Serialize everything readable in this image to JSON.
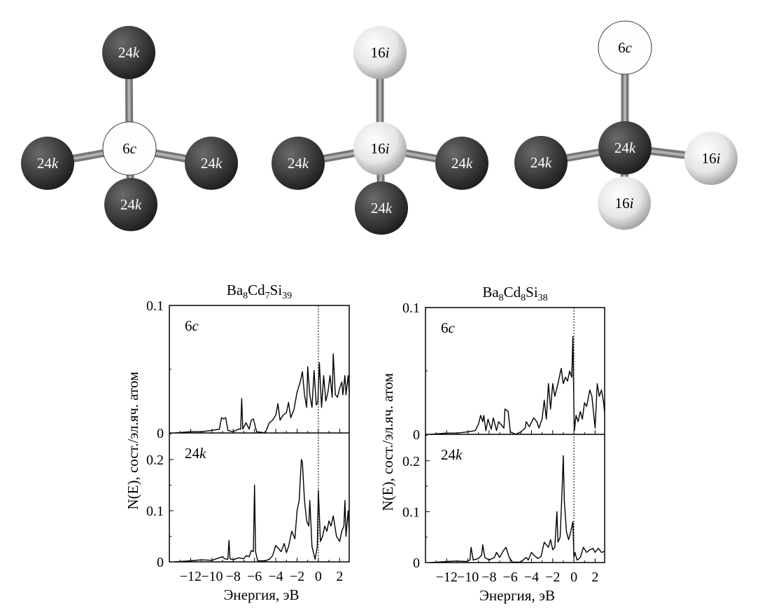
{
  "molecules": [
    {
      "center": "6c",
      "top": "24k",
      "left": "24k",
      "right": "24k",
      "bottom": "24k"
    },
    {
      "center": "16i",
      "top": "16i",
      "left": "24k",
      "right": "24k",
      "bottom": "24k"
    },
    {
      "center": "24k",
      "top": "6c",
      "left": "24k",
      "right": "16i",
      "bottom": "16i"
    }
  ],
  "atom_colors": {
    "24k": "#3a3a3a",
    "16i": "#e6e6e6",
    "6c": "#ffffff",
    "bond": "#8a8a8a"
  },
  "chart_data": [
    {
      "type": "line",
      "title": "Ba8Cd7Si39",
      "title_parts": [
        "Ba",
        "8",
        "Cd",
        "7",
        "Si",
        "39"
      ],
      "xlabel": "Энергия, эВ",
      "ylabel": "N(E), сост./эл.яч. атом",
      "xlim": [
        -14,
        2.9
      ],
      "xticks": [
        "−12",
        "−10",
        "−8",
        "−6",
        "−4",
        "−2",
        "0",
        "2"
      ],
      "xtick_values": [
        -12,
        -10,
        -8,
        -6,
        -4,
        -2,
        0,
        2
      ],
      "fermi_level": 0,
      "panels": [
        {
          "label": "6c",
          "ylim": [
            0,
            0.1
          ],
          "yticks": [
            "0",
            "0.1"
          ],
          "ytick_values": [
            0,
            0.1
          ],
          "x": [
            -13.5,
            -12,
            -11,
            -10,
            -9.3,
            -9.1,
            -8.9,
            -8.7,
            -8.5,
            -8,
            -7.5,
            -7.3,
            -7.2,
            -7.1,
            -6.8,
            -6.5,
            -6.3,
            -6.1,
            -5.8,
            -5,
            -4.6,
            -4.3,
            -4,
            -3.8,
            -3.6,
            -3.3,
            -3,
            -2.8,
            -2.6,
            -2.3,
            -2,
            -1.7,
            -1.5,
            -1.3,
            -1.1,
            -1,
            -0.8,
            -0.6,
            -0.4,
            -0.2,
            -0.05,
            0.1,
            0.3,
            0.5,
            0.7,
            0.9,
            1.1,
            1.3,
            1.4,
            1.6,
            1.8,
            2,
            2.2,
            2.3,
            2.5,
            2.6,
            2.8,
            2.9
          ],
          "y": [
            0,
            0.001,
            0.001,
            0.002,
            0.003,
            0.012,
            0.011,
            0.012,
            0.002,
            0.001,
            0.003,
            0.003,
            0.027,
            0.003,
            0.008,
            0.003,
            0.01,
            0.011,
            0.001,
            0,
            0.008,
            0.01,
            0.014,
            0.023,
            0.01,
            0.014,
            0.016,
            0.024,
            0.012,
            0.018,
            0.032,
            0.04,
            0.048,
            0.03,
            0.02,
            0.052,
            0.03,
            0.02,
            0.049,
            0.022,
            0.024,
            0.055,
            0.02,
            0.045,
            0.025,
            0.032,
            0.045,
            0.028,
            0.062,
            0.03,
            0.028,
            0.035,
            0.04,
            0.03,
            0.045,
            0.03,
            0.045,
            0.032
          ]
        },
        {
          "label": "24k",
          "ylim": [
            0,
            0.252
          ],
          "yticks": [
            "0",
            "0.1",
            "0.2"
          ],
          "ytick_values": [
            0,
            0.1,
            0.2
          ],
          "x": [
            -13.5,
            -12,
            -11,
            -10,
            -9,
            -8.8,
            -8.5,
            -8.4,
            -8.3,
            -8,
            -7.5,
            -7,
            -6.8,
            -6.5,
            -6.3,
            -6.1,
            -6.0,
            -5.9,
            -5.7,
            -5,
            -4.6,
            -4.3,
            -4,
            -3.7,
            -3.5,
            -3.2,
            -3,
            -2.8,
            -2.5,
            -2.2,
            -2,
            -1.8,
            -1.6,
            -1.5,
            -1.3,
            -1.1,
            -0.9,
            -0.8,
            -0.6,
            -0.3,
            -0.1,
            0,
            0.2,
            0.4,
            0.6,
            0.8,
            1,
            1.2,
            1.4,
            1.7,
            2,
            2.2,
            2.4,
            2.5,
            2.6,
            2.8,
            2.9
          ],
          "y": [
            0,
            0.002,
            0.004,
            0.003,
            0.01,
            0.006,
            0.005,
            0.042,
            0.006,
            0.004,
            0.008,
            0.006,
            0.012,
            0.01,
            0.022,
            0.02,
            0.15,
            0.02,
            0.002,
            0.002,
            0.005,
            0.012,
            0.032,
            0.025,
            0.02,
            0.036,
            0.018,
            0.03,
            0.06,
            0.045,
            0.1,
            0.12,
            0.2,
            0.195,
            0.12,
            0.08,
            0.07,
            0.12,
            0.03,
            0.005,
            0.03,
            0.14,
            0.04,
            0.05,
            0.07,
            0.06,
            0.08,
            0.07,
            0.09,
            0.05,
            0.04,
            0.06,
            0.07,
            0.12,
            0.05,
            0.1,
            0.06
          ]
        }
      ]
    },
    {
      "type": "line",
      "title": "Ba8Cd8Si38",
      "title_parts": [
        "Ba",
        "8",
        "Cd",
        "8",
        "Si",
        "38"
      ],
      "xlabel": "Энергия, эВ",
      "ylabel": "N(E), сост./эл.яч. атом",
      "xlim": [
        -14,
        2.9
      ],
      "xticks": [
        "−12",
        "−10",
        "−8",
        "−6",
        "−4",
        "−2",
        "0",
        "2"
      ],
      "xtick_values": [
        -12,
        -10,
        -8,
        -6,
        -4,
        -2,
        0,
        2
      ],
      "fermi_level": 0,
      "panels": [
        {
          "label": "6c",
          "ylim": [
            0,
            0.1
          ],
          "yticks": [
            "0",
            "0.1"
          ],
          "ytick_values": [
            0,
            0.1
          ],
          "x": [
            -13.5,
            -12,
            -11,
            -10,
            -9.3,
            -9,
            -8.8,
            -8.6,
            -8.5,
            -8.3,
            -8.1,
            -7.8,
            -7.6,
            -7.3,
            -7.1,
            -6.6,
            -6.5,
            -6.2,
            -6,
            -5.5,
            -5,
            -4.6,
            -4.5,
            -4.2,
            -3.8,
            -3.5,
            -3.3,
            -3,
            -2.8,
            -2.6,
            -2.4,
            -2.2,
            -2,
            -1.8,
            -1.5,
            -1.2,
            -1,
            -0.8,
            -0.6,
            -0.4,
            -0.2,
            -0.1,
            0,
            0.05,
            0.2,
            0.4,
            0.6,
            0.8,
            1,
            1.2,
            1.5,
            1.7,
            2,
            2.2,
            2.4,
            2.6,
            2.8,
            2.9
          ],
          "y": [
            0,
            0.001,
            0.001,
            0.002,
            0.003,
            0.008,
            0.015,
            0.01,
            0.015,
            0.003,
            0.012,
            0.004,
            0.013,
            0.003,
            0.01,
            0.005,
            0.02,
            0.018,
            0.002,
            0,
            0.002,
            0.005,
            0.01,
            0.006,
            0.013,
            0.01,
            0.005,
            0.012,
            0.027,
            0.012,
            0.04,
            0.02,
            0.04,
            0.03,
            0.04,
            0.052,
            0.04,
            0.045,
            0.042,
            0.05,
            0.045,
            0.077,
            0.02,
            0.003,
            0.015,
            0.01,
            0.018,
            0.012,
            0.025,
            0.022,
            0.035,
            0.03,
            0.005,
            0.04,
            0.03,
            0.035,
            0.025,
            0.017
          ]
        },
        {
          "label": "24k",
          "ylim": [
            0,
            0.252
          ],
          "yticks": [
            "0",
            "0.1",
            "0.2"
          ],
          "ytick_values": [
            0,
            0.1,
            0.2
          ],
          "x": [
            -13.5,
            -12,
            -11,
            -10.2,
            -9.8,
            -9.7,
            -9.5,
            -9,
            -8.7,
            -8.6,
            -8.4,
            -8,
            -7.5,
            -7.3,
            -7,
            -6.6,
            -6.4,
            -6.1,
            -5.8,
            -5,
            -4.5,
            -4.3,
            -4,
            -3.8,
            -3.4,
            -3.1,
            -2.8,
            -2.6,
            -2.4,
            -2.2,
            -2,
            -1.8,
            -1.6,
            -1.5,
            -1.3,
            -1.1,
            -1.0,
            -0.9,
            -0.7,
            -0.5,
            -0.3,
            -0.1,
            0,
            0.1,
            0.3,
            0.6,
            0.9,
            1.2,
            1.5,
            1.8,
            2,
            2.3,
            2.6,
            2.9
          ],
          "y": [
            0,
            0.002,
            0.003,
            0.002,
            0.005,
            0.03,
            0.005,
            0.008,
            0.015,
            0.035,
            0.01,
            0.005,
            0.01,
            0.02,
            0.01,
            0.025,
            0.03,
            0.01,
            0.001,
            0.001,
            0.01,
            0.005,
            0.02,
            0.015,
            0.008,
            0.012,
            0.04,
            0.035,
            0.03,
            0.045,
            0.025,
            0.03,
            0.1,
            0.04,
            0.05,
            0.15,
            0.21,
            0.12,
            0.06,
            0.045,
            0.06,
            0.08,
            0.01,
            0.02,
            0.005,
            0.01,
            0.03,
            0.02,
            0.025,
            0.028,
            0.02,
            0.028,
            0.02,
            0.022
          ]
        }
      ]
    }
  ]
}
